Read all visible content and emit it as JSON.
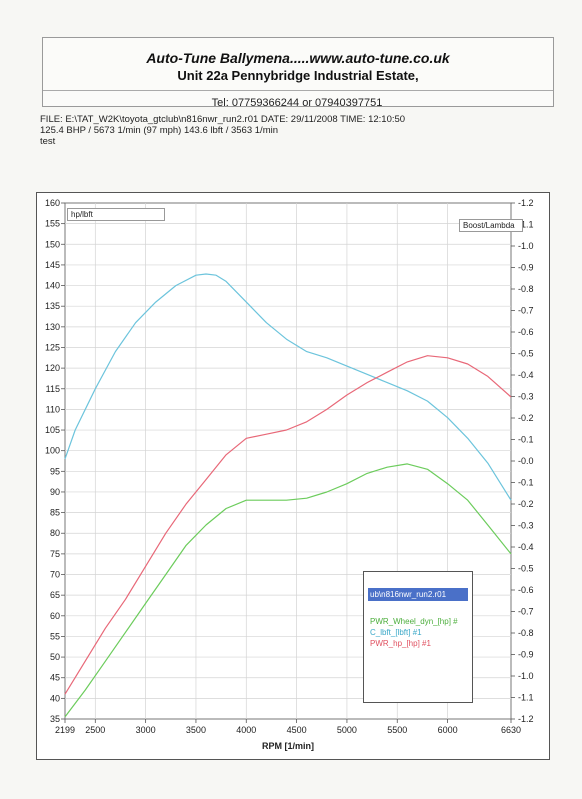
{
  "header": {
    "line1": "Auto-Tune Ballymena.....www.auto-tune.co.uk",
    "line2": "Unit 22a Pennybridge Industrial Estate,",
    "phone": "Tel: 07759366244 or 07940397751"
  },
  "info": {
    "line1": "FILE: E:\\TAT_W2K\\toyota_gtclub\\n816nwr_run2.r01  DATE: 29/11/2008  TIME: 12:10:50",
    "line2": "125.4 BHP / 5673 1/min (97 mph)    143.6 lbft / 3563 1/min",
    "line3": "test"
  },
  "chart_data": {
    "type": "line",
    "xlabel": "RPM  [1/min]",
    "ylabel": "hp/lbft",
    "y2label": "Boost/Lambda",
    "xlim": [
      2199,
      6630
    ],
    "ylim": [
      35,
      160
    ],
    "y2lim": [
      -1.2,
      1.2
    ],
    "x_ticks": [
      "2199",
      "2500",
      "3000",
      "3500",
      "4000",
      "4500",
      "5000",
      "5500",
      "6000",
      "6630"
    ],
    "x_tick_values": [
      2199,
      2500,
      3000,
      3500,
      4000,
      4500,
      5000,
      5500,
      6000,
      6630
    ],
    "y_ticks": [
      35,
      40,
      45,
      50,
      55,
      60,
      65,
      70,
      75,
      80,
      85,
      90,
      95,
      100,
      105,
      110,
      115,
      120,
      125,
      130,
      135,
      140,
      145,
      150,
      155,
      160
    ],
    "y2_ticks": [
      "-1.2",
      "-1.1",
      "-1.0",
      "-0.9",
      "-0.8",
      "-0.7",
      "-0.6",
      "-0.5",
      "-0.4",
      "-0.3",
      "-0.2",
      "-0.1",
      "-0.0",
      "-0.1",
      "-0.2",
      "-0.3",
      "-0.4",
      "-0.5",
      "-0.6",
      "-0.7",
      "-0.8",
      "-0.9",
      "-1.0",
      "-1.1",
      "-1.2"
    ],
    "grid": true,
    "legend": {
      "title": "ub\\n816nwr_run2.r01",
      "placement": "bottom-right"
    },
    "series": [
      {
        "name": "C_lbft_[lbft] #1",
        "color": "#6cc4dc",
        "x": [
          2199,
          2300,
          2500,
          2700,
          2900,
          3100,
          3300,
          3500,
          3600,
          3700,
          3800,
          4000,
          4200,
          4400,
          4600,
          4800,
          5000,
          5200,
          5400,
          5600,
          5800,
          6000,
          6200,
          6400,
          6630
        ],
        "y": [
          98,
          105,
          115,
          124,
          131,
          136,
          140,
          142.5,
          142.8,
          142.5,
          141,
          136,
          131,
          127,
          124,
          122.5,
          120.5,
          118.5,
          116.5,
          114.5,
          112,
          108,
          103,
          97,
          88
        ]
      },
      {
        "name": "PWR_hp_[hp] #1",
        "color": "#e86878",
        "x": [
          2199,
          2400,
          2600,
          2800,
          3000,
          3200,
          3400,
          3600,
          3800,
          4000,
          4200,
          4400,
          4600,
          4800,
          5000,
          5200,
          5400,
          5600,
          5800,
          6000,
          6200,
          6400,
          6630
        ],
        "y": [
          41,
          49,
          57,
          64,
          72,
          80,
          87,
          93,
          99,
          103,
          104,
          105,
          107,
          110,
          113.5,
          116.5,
          119,
          121.5,
          123,
          122.5,
          121,
          118,
          113
        ]
      },
      {
        "name": "PWR_Wheel_dyn_[hp] #",
        "color": "#6ccc5c",
        "x": [
          2199,
          2400,
          2600,
          2800,
          3000,
          3200,
          3400,
          3600,
          3800,
          4000,
          4200,
          4400,
          4600,
          4800,
          5000,
          5200,
          5400,
          5600,
          5800,
          6000,
          6200,
          6400,
          6630
        ],
        "y": [
          35.5,
          42,
          49,
          56,
          63,
          70,
          77,
          82,
          86,
          88,
          88,
          88,
          88.5,
          90,
          92,
          94.5,
          96,
          96.8,
          95.5,
          92,
          88,
          82,
          75
        ]
      }
    ]
  }
}
